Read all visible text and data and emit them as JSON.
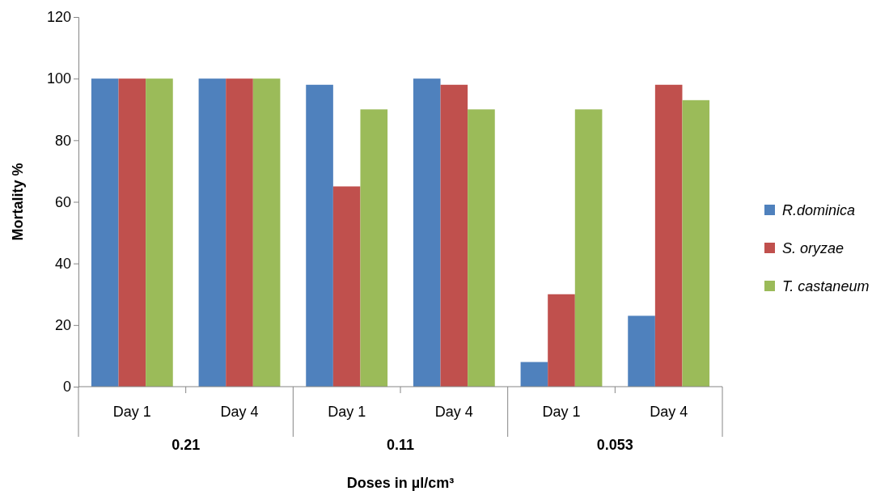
{
  "chart_data": {
    "type": "bar",
    "xlabel": "Doses in µl/cm³",
    "ylabel": "Mortality %",
    "categories": [
      "Day 1",
      "Day 4",
      "Day 1",
      "Day 4",
      "Day 1",
      "Day 4"
    ],
    "series": [
      {
        "name": "R.dominica",
        "color": "#4f81bd",
        "values": [
          100,
          100,
          98,
          100,
          8,
          23
        ]
      },
      {
        "name": "S. oryzae",
        "color": "#c0504d",
        "values": [
          100,
          100,
          65,
          98,
          30,
          98
        ]
      },
      {
        "name": "T. castaneum",
        "color": "#9bbb59",
        "values": [
          100,
          100,
          90,
          90,
          90,
          93
        ]
      }
    ],
    "annotations": [
      "0.21",
      "0.11",
      "0.053"
    ],
    "ylim": [
      0,
      120
    ],
    "yticks": [
      0,
      20,
      40,
      60,
      80,
      100,
      120
    ],
    "legend": "right"
  }
}
